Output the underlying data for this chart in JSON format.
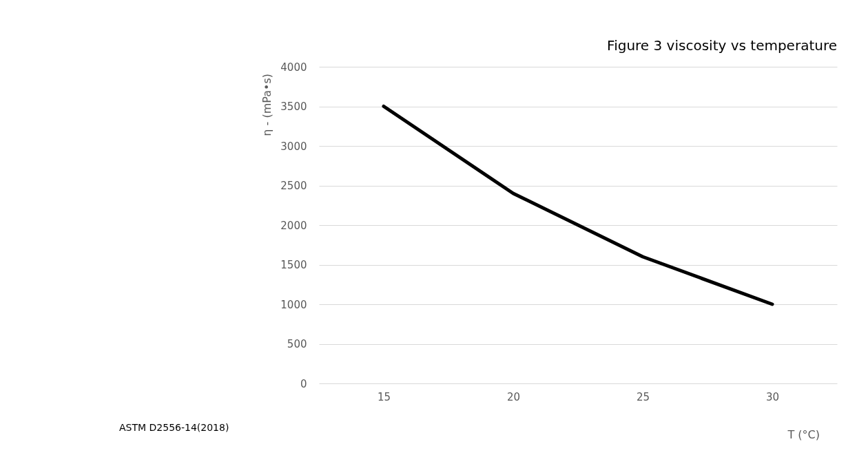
{
  "chart_data": {
    "type": "line",
    "title": "Figure 3 viscosity vs temperature",
    "xlabel": "T (°C)",
    "ylabel": "η - (mPa•s)",
    "categories": [
      "15",
      "20",
      "25",
      "30"
    ],
    "series": [
      {
        "color": "#000000",
        "values": [
          3500,
          2400,
          1600,
          1000
        ]
      }
    ],
    "ylim": [
      0,
      4000
    ],
    "yticks": [
      0,
      500,
      1000,
      1500,
      2000,
      2500,
      3000,
      3500,
      4000
    ],
    "grid": "y",
    "marker": "none",
    "line_style": "solid",
    "annotations": [
      "ASTM D2556-14(2018)"
    ]
  }
}
